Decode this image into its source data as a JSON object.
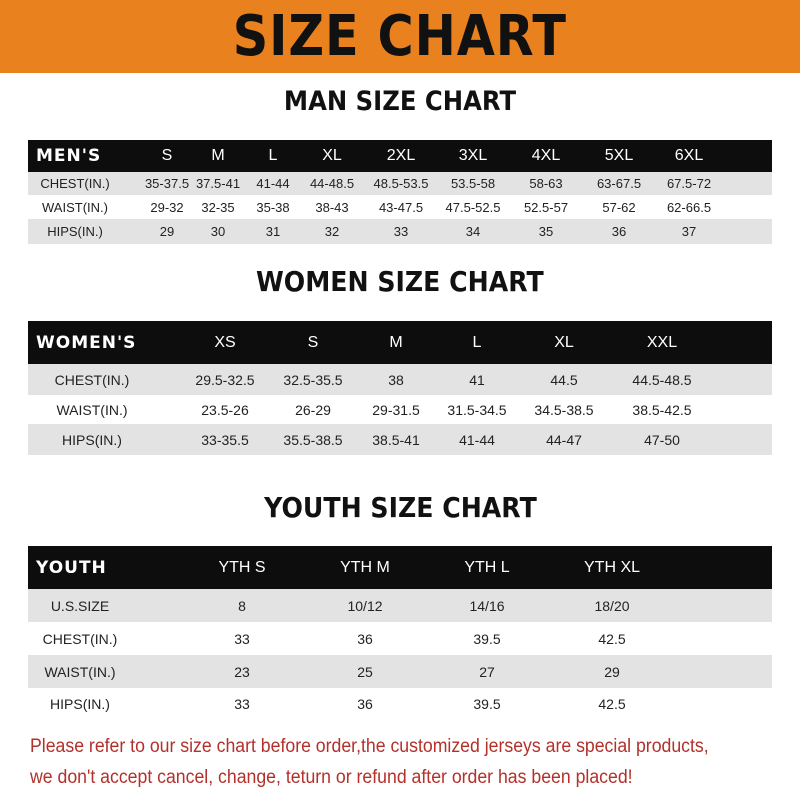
{
  "banner_title": "SIZE CHART",
  "men": {
    "title": "MAN SIZE CHART",
    "header": [
      "MEN'S",
      "S",
      "M",
      "L",
      "XL",
      "2XL",
      "3XL",
      "4XL",
      "5XL",
      "6XL"
    ],
    "rows": [
      [
        "CHEST(IN.)",
        "35-37.5",
        "37.5-41",
        "41-44",
        "44-48.5",
        "48.5-53.5",
        "53.5-58",
        "58-63",
        "63-67.5",
        "67.5-72"
      ],
      [
        "WAIST(IN.)",
        "29-32",
        "32-35",
        "35-38",
        "38-43",
        "43-47.5",
        "47.5-52.5",
        "52.5-57",
        "57-62",
        "62-66.5"
      ],
      [
        "HIPS(IN.)",
        "29",
        "30",
        "31",
        "32",
        "33",
        "34",
        "35",
        "36",
        "37"
      ]
    ]
  },
  "women": {
    "title": "WOMEN SIZE CHART",
    "header": [
      "WOMEN'S",
      "XS",
      "S",
      "M",
      "L",
      "XL",
      "XXL"
    ],
    "rows": [
      [
        "CHEST(IN.)",
        "29.5-32.5",
        "32.5-35.5",
        "38",
        "41",
        "44.5",
        "44.5-48.5"
      ],
      [
        "WAIST(IN.)",
        "23.5-26",
        "26-29",
        "29-31.5",
        "31.5-34.5",
        "34.5-38.5",
        "38.5-42.5"
      ],
      [
        "HIPS(IN.)",
        "33-35.5",
        "35.5-38.5",
        "38.5-41",
        "41-44",
        "44-47",
        "47-50"
      ]
    ]
  },
  "youth": {
    "title": "YOUTH SIZE CHART",
    "header": [
      "YOUTH",
      "YTH S",
      "YTH M",
      "YTH L",
      "YTH XL"
    ],
    "rows": [
      [
        "U.S.SIZE",
        "8",
        "10/12",
        "14/16",
        "18/20"
      ],
      [
        "CHEST(IN.)",
        "33",
        "36",
        "39.5",
        "42.5"
      ],
      [
        "WAIST(IN.)",
        "23",
        "25",
        "27",
        "29"
      ],
      [
        "HIPS(IN.)",
        "33",
        "36",
        "39.5",
        "42.5"
      ]
    ]
  },
  "note": [
    "Please refer to our size chart before order,the customized jerseys are special products,",
    "we don't accept cancel, change, teturn or refund after order has been placed!"
  ],
  "colors": {
    "banner": "#e9811e",
    "header_row": "#0d0d0d",
    "stripe": "#e3e3e3",
    "note": "#b3302b"
  }
}
